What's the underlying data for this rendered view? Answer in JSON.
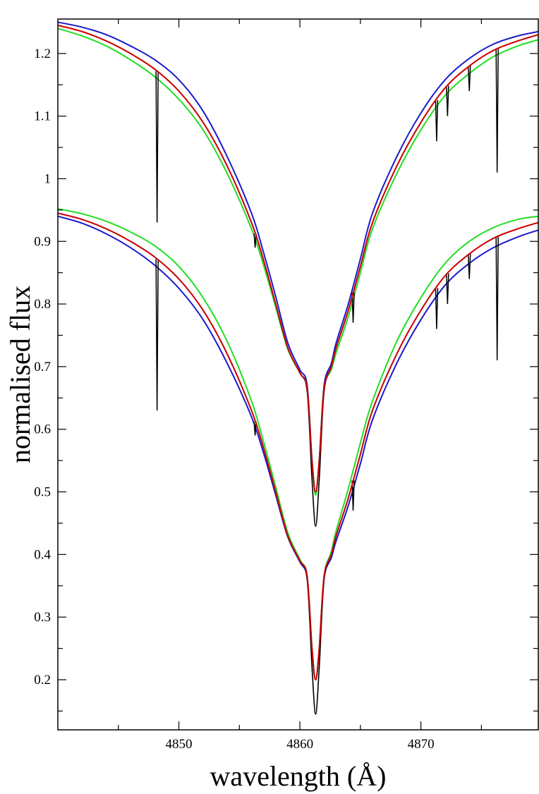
{
  "chart_data": {
    "type": "line",
    "title": "",
    "xlabel": "wavelength (Å)",
    "ylabel": "normalised flux",
    "xlim": [
      4840.0,
      4879.7
    ],
    "ylim": [
      0.12,
      1.255
    ],
    "x_ticks": [
      4850,
      4860,
      4870
    ],
    "x_tick_labels": [
      "4850",
      "4860",
      "4870"
    ],
    "y_ticks": [
      0.2,
      0.3,
      0.4,
      0.5,
      0.6,
      0.7,
      0.8,
      0.9,
      1,
      1.1,
      1.2
    ],
    "y_tick_labels": [
      "0.2",
      "0.3",
      "0.4",
      "0.5",
      "0.6",
      "0.7",
      "0.8",
      "0.9",
      "1",
      "1.1",
      "1.2"
    ],
    "grid": false,
    "legend": "none",
    "line_center": 4861.3,
    "colors": {
      "observed": "#000000",
      "fit_red": "#cc0000",
      "fit_green": "#22dd22",
      "fit_blue": "#1a1acc"
    },
    "series": [
      {
        "group": "upper",
        "color_key": "observed",
        "x": [
          4840,
          4842,
          4844,
          4846,
          4848,
          4850,
          4852,
          4854,
          4856,
          4857,
          4858,
          4859,
          4860,
          4860.6,
          4861.0,
          4861.3,
          4861.6,
          4862.0,
          4862.6,
          4863,
          4864,
          4865,
          4866,
          4868,
          4870,
          4872,
          4874,
          4876,
          4878,
          4879.7
        ],
        "y": [
          1.245,
          1.235,
          1.22,
          1.2,
          1.175,
          1.14,
          1.09,
          1.02,
          0.93,
          0.87,
          0.8,
          0.73,
          0.69,
          0.66,
          0.52,
          0.445,
          0.52,
          0.66,
          0.7,
          0.73,
          0.79,
          0.86,
          0.93,
          1.02,
          1.09,
          1.145,
          1.18,
          1.205,
          1.22,
          1.23
        ],
        "absorption_lines": [
          [
            4848.2,
            0.93
          ],
          [
            4856.3,
            0.89
          ],
          [
            4864.4,
            0.77
          ],
          [
            4871.3,
            1.06
          ],
          [
            4872.2,
            1.1
          ],
          [
            4874.0,
            1.14
          ],
          [
            4876.3,
            1.01
          ]
        ]
      },
      {
        "group": "upper",
        "color_key": "fit_red",
        "x": [
          4840,
          4842,
          4844,
          4846,
          4848,
          4850,
          4852,
          4854,
          4856,
          4857,
          4858,
          4859,
          4860,
          4860.6,
          4861.0,
          4861.3,
          4861.6,
          4862.0,
          4862.6,
          4863,
          4864,
          4865,
          4866,
          4868,
          4870,
          4872,
          4874,
          4876,
          4878,
          4879.7
        ],
        "y": [
          1.245,
          1.235,
          1.22,
          1.2,
          1.175,
          1.14,
          1.09,
          1.02,
          0.93,
          0.87,
          0.8,
          0.73,
          0.69,
          0.665,
          0.55,
          0.5,
          0.55,
          0.665,
          0.7,
          0.73,
          0.79,
          0.86,
          0.93,
          1.02,
          1.09,
          1.145,
          1.18,
          1.205,
          1.22,
          1.23
        ]
      },
      {
        "group": "upper",
        "color_key": "fit_green",
        "x": [
          4840,
          4842,
          4844,
          4846,
          4848,
          4850,
          4852,
          4854,
          4856,
          4857,
          4858,
          4859,
          4860,
          4860.6,
          4861.0,
          4861.3,
          4861.6,
          4862.0,
          4862.6,
          4863,
          4864,
          4865,
          4866,
          4868,
          4870,
          4872,
          4874,
          4876,
          4878,
          4879.7
        ],
        "y": [
          1.24,
          1.228,
          1.212,
          1.19,
          1.163,
          1.127,
          1.078,
          1.008,
          0.92,
          0.862,
          0.795,
          0.728,
          0.69,
          0.665,
          0.55,
          0.495,
          0.55,
          0.665,
          0.695,
          0.722,
          0.78,
          0.85,
          0.92,
          1.008,
          1.078,
          1.133,
          1.168,
          1.195,
          1.212,
          1.222
        ]
      },
      {
        "group": "upper",
        "color_key": "fit_blue",
        "x": [
          4840,
          4842,
          4844,
          4846,
          4848,
          4850,
          4852,
          4854,
          4856,
          4857,
          4858,
          4859,
          4860,
          4860.6,
          4861.0,
          4861.3,
          4861.6,
          4862.0,
          4862.6,
          4863,
          4864,
          4865,
          4866,
          4868,
          4870,
          4872,
          4874,
          4876,
          4878,
          4879.7
        ],
        "y": [
          1.25,
          1.242,
          1.23,
          1.212,
          1.19,
          1.158,
          1.108,
          1.035,
          0.945,
          0.882,
          0.812,
          0.738,
          0.695,
          0.67,
          0.55,
          0.5,
          0.55,
          0.67,
          0.705,
          0.738,
          0.8,
          0.872,
          0.945,
          1.035,
          1.105,
          1.158,
          1.192,
          1.215,
          1.228,
          1.235
        ]
      },
      {
        "group": "lower",
        "color_key": "observed",
        "x": [
          4840,
          4842,
          4844,
          4846,
          4848,
          4850,
          4852,
          4854,
          4856,
          4857,
          4858,
          4859,
          4860,
          4860.6,
          4861.0,
          4861.3,
          4861.6,
          4862.0,
          4862.6,
          4863,
          4864,
          4865,
          4866,
          4868,
          4870,
          4872,
          4874,
          4876,
          4878,
          4879.7
        ],
        "y": [
          0.945,
          0.935,
          0.92,
          0.9,
          0.875,
          0.84,
          0.79,
          0.72,
          0.63,
          0.57,
          0.5,
          0.43,
          0.39,
          0.36,
          0.22,
          0.145,
          0.22,
          0.36,
          0.4,
          0.43,
          0.49,
          0.56,
          0.63,
          0.72,
          0.79,
          0.845,
          0.88,
          0.905,
          0.92,
          0.93
        ],
        "absorption_lines": [
          [
            4848.2,
            0.63
          ],
          [
            4856.3,
            0.59
          ],
          [
            4864.4,
            0.47
          ],
          [
            4871.3,
            0.76
          ],
          [
            4872.2,
            0.8
          ],
          [
            4874.0,
            0.84
          ],
          [
            4876.3,
            0.71
          ]
        ]
      },
      {
        "group": "lower",
        "color_key": "fit_red",
        "x": [
          4840,
          4842,
          4844,
          4846,
          4848,
          4850,
          4852,
          4854,
          4856,
          4857,
          4858,
          4859,
          4860,
          4860.6,
          4861.0,
          4861.3,
          4861.6,
          4862.0,
          4862.6,
          4863,
          4864,
          4865,
          4866,
          4868,
          4870,
          4872,
          4874,
          4876,
          4878,
          4879.7
        ],
        "y": [
          0.945,
          0.935,
          0.92,
          0.9,
          0.875,
          0.84,
          0.79,
          0.72,
          0.63,
          0.57,
          0.5,
          0.43,
          0.39,
          0.365,
          0.25,
          0.2,
          0.25,
          0.365,
          0.4,
          0.43,
          0.49,
          0.56,
          0.63,
          0.72,
          0.79,
          0.845,
          0.88,
          0.905,
          0.92,
          0.93
        ]
      },
      {
        "group": "lower",
        "color_key": "fit_green",
        "x": [
          4840,
          4842,
          4844,
          4846,
          4848,
          4850,
          4852,
          4854,
          4856,
          4857,
          4858,
          4859,
          4860,
          4860.6,
          4861.0,
          4861.3,
          4861.6,
          4862.0,
          4862.6,
          4863,
          4864,
          4865,
          4866,
          4868,
          4870,
          4872,
          4874,
          4876,
          4878,
          4879.7
        ],
        "y": [
          0.952,
          0.944,
          0.932,
          0.915,
          0.893,
          0.86,
          0.81,
          0.74,
          0.645,
          0.58,
          0.508,
          0.435,
          0.392,
          0.365,
          0.25,
          0.2,
          0.25,
          0.365,
          0.405,
          0.438,
          0.505,
          0.578,
          0.645,
          0.74,
          0.81,
          0.865,
          0.9,
          0.922,
          0.935,
          0.94
        ]
      },
      {
        "group": "lower",
        "color_key": "fit_blue",
        "x": [
          4840,
          4842,
          4844,
          4846,
          4848,
          4850,
          4852,
          4854,
          4856,
          4857,
          4858,
          4859,
          4860,
          4860.6,
          4861.0,
          4861.3,
          4861.6,
          4862.0,
          4862.6,
          4863,
          4864,
          4865,
          4866,
          4868,
          4870,
          4872,
          4874,
          4876,
          4878,
          4879.7
        ],
        "y": [
          0.94,
          0.929,
          0.912,
          0.89,
          0.862,
          0.825,
          0.775,
          0.705,
          0.62,
          0.562,
          0.495,
          0.428,
          0.388,
          0.362,
          0.25,
          0.2,
          0.25,
          0.362,
          0.395,
          0.422,
          0.478,
          0.545,
          0.615,
          0.705,
          0.775,
          0.83,
          0.865,
          0.89,
          0.907,
          0.918
        ]
      }
    ]
  }
}
